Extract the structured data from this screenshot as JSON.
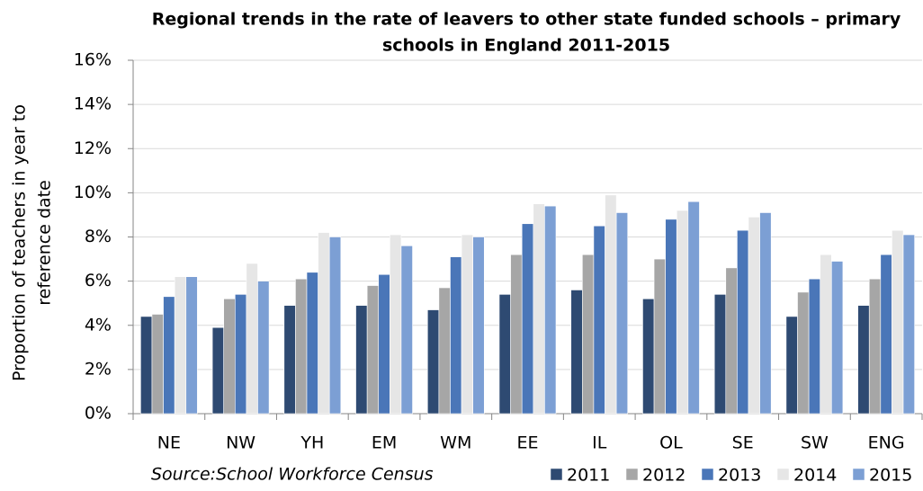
{
  "chart_data": {
    "type": "bar",
    "title": [
      "Regional trends in the rate of leavers to other state funded schools – primary",
      "schools in England 2011-2015"
    ],
    "y_label": [
      "Proportion of teachers in year to",
      "reference date"
    ],
    "note": "Source:School Workforce Census",
    "categories": [
      "NE",
      "NW",
      "YH",
      "EM",
      "WM",
      "EE",
      "IL",
      "OL",
      "SE",
      "SW",
      "ENG"
    ],
    "series": [
      {
        "name": "2011",
        "color": "#2e4a72",
        "values": [
          4.4,
          3.9,
          4.9,
          4.9,
          4.7,
          5.4,
          5.6,
          5.2,
          5.4,
          4.4,
          4.9
        ]
      },
      {
        "name": "2012",
        "color": "#a6a6a6",
        "values": [
          4.5,
          5.2,
          6.1,
          5.8,
          5.7,
          7.2,
          7.2,
          7.0,
          6.6,
          5.5,
          6.1
        ]
      },
      {
        "name": "2013",
        "color": "#4a76b8",
        "values": [
          5.3,
          5.4,
          6.4,
          6.3,
          7.1,
          8.6,
          8.5,
          8.8,
          8.3,
          6.1,
          7.2
        ]
      },
      {
        "name": "2014",
        "color": "#e6e6e6",
        "values": [
          6.2,
          6.8,
          8.2,
          8.1,
          8.1,
          9.5,
          9.9,
          9.2,
          8.9,
          7.2,
          8.3
        ]
      },
      {
        "name": "2015",
        "color": "#7c9fd4",
        "values": [
          6.2,
          6.0,
          8.0,
          7.6,
          8.0,
          9.4,
          9.1,
          9.6,
          9.1,
          6.9,
          8.1
        ]
      }
    ],
    "ylim": [
      0,
      16
    ],
    "yticks": [
      {
        "value": 0,
        "label": "0%"
      },
      {
        "value": 2,
        "label": "2%"
      },
      {
        "value": 4,
        "label": "4%"
      },
      {
        "value": 6,
        "label": "6%"
      },
      {
        "value": 8,
        "label": "8%"
      },
      {
        "value": 10,
        "label": "10%"
      },
      {
        "value": 12,
        "label": "12%"
      },
      {
        "value": 14,
        "label": "14%"
      },
      {
        "value": 16,
        "label": "16%"
      }
    ],
    "grid": true
  }
}
